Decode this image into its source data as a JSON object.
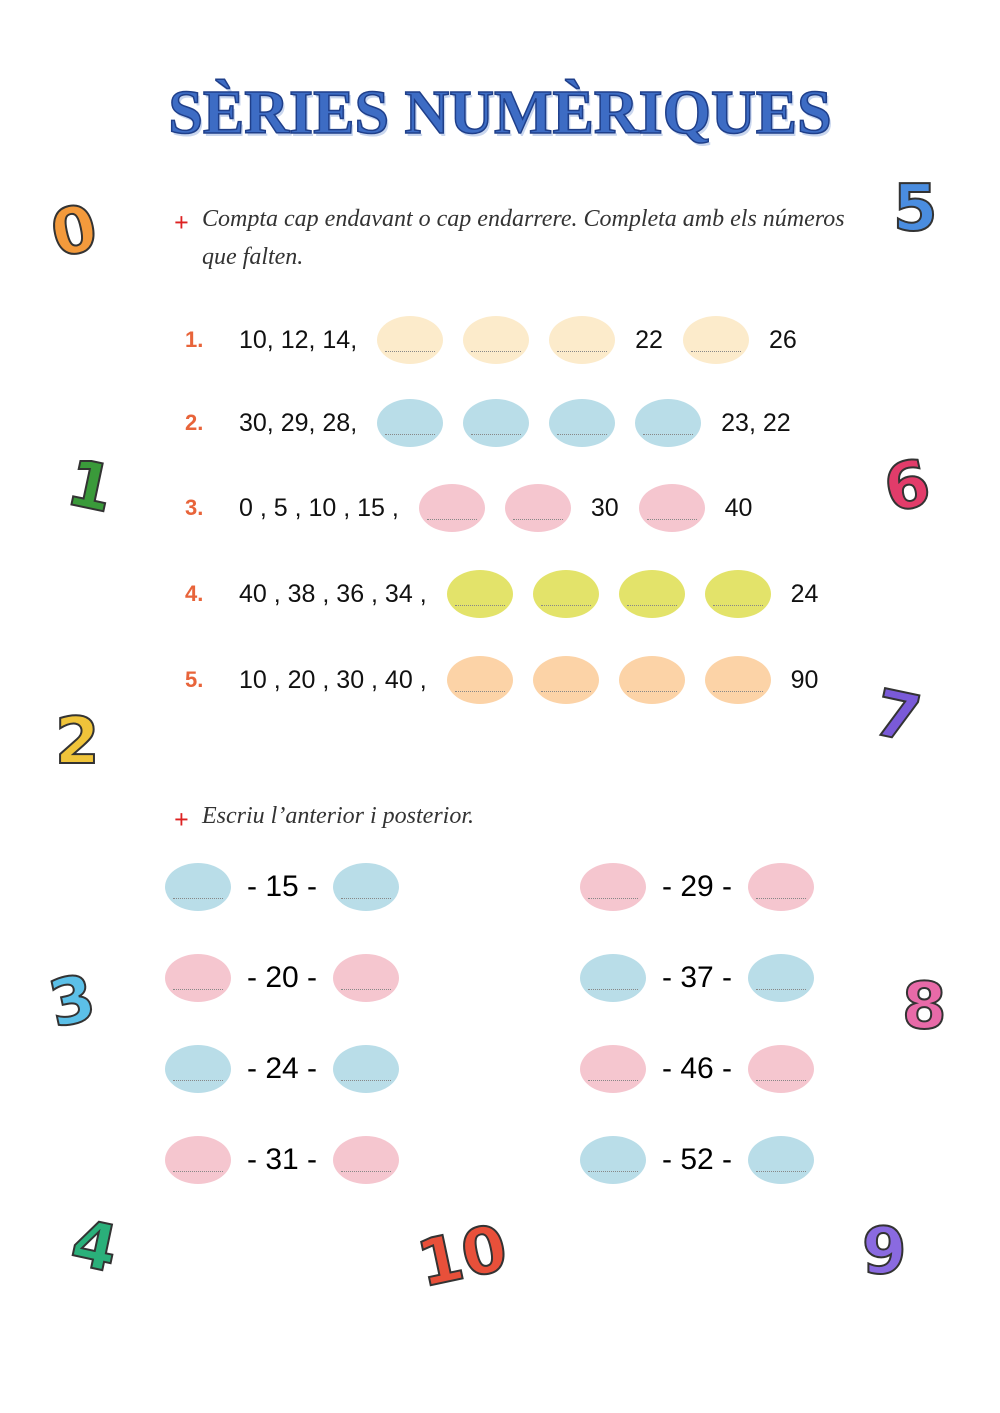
{
  "title": "SÈRIES NUMÈRIQUES",
  "section1": {
    "instruction": "Compta cap endavant o cap endarrere. Completa amb els números que falten.",
    "rows": [
      {
        "label": "1.",
        "color": "#fcebcb",
        "items": [
          "10, 12, 14,",
          null,
          null,
          null,
          "22",
          null,
          "26"
        ]
      },
      {
        "label": "2.",
        "color": "#b9dde8",
        "items": [
          "30, 29, 28,",
          null,
          null,
          null,
          null,
          "23,  22"
        ]
      },
      {
        "label": "3.",
        "color": "#f5c6cf",
        "items": [
          "0 , 5 , 10 ,  15 ,",
          null,
          null,
          "30",
          null,
          "40"
        ]
      },
      {
        "label": "4.",
        "color": "#e3e36a",
        "items": [
          "40 , 38 , 36 , 34 ,",
          null,
          null,
          null,
          null,
          "24"
        ]
      },
      {
        "label": "5.",
        "color": "#fcd3a7",
        "items": [
          "10 , 20 , 30 , 40 ,",
          null,
          null,
          null,
          null,
          "90"
        ]
      }
    ]
  },
  "section2": {
    "instruction": "Escriu l’anterior i posterior.",
    "left": [
      {
        "text": "- 15 -",
        "color": "#b9dde8"
      },
      {
        "text": "- 20 -",
        "color": "#f5c6cf"
      },
      {
        "text": "- 24 -",
        "color": "#b9dde8"
      },
      {
        "text": "- 31 -",
        "color": "#f5c6cf"
      }
    ],
    "right": [
      {
        "text": "- 29 -",
        "color": "#f5c6cf"
      },
      {
        "text": "- 37 -",
        "color": "#b9dde8"
      },
      {
        "text": "- 46 -",
        "color": "#f5c6cf"
      },
      {
        "text": "- 52 -",
        "color": "#b9dde8"
      }
    ]
  },
  "decorations": [
    "0",
    "5",
    "1",
    "6",
    "2",
    "7",
    "3",
    "8",
    "4",
    "10",
    "9"
  ]
}
